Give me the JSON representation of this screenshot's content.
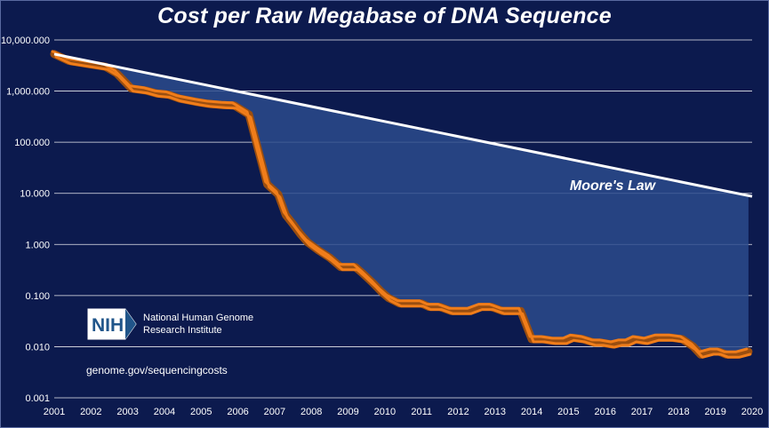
{
  "title": "Cost per Raw Megabase of DNA Sequence",
  "colors": {
    "background": "#0c1a4e",
    "gap_fill": "#2b4b8c",
    "actual_outline": "#f07d1a",
    "actual_band": "#9a4e10",
    "moore": "#ffffff",
    "grid": "#ffffff"
  },
  "chart_data": {
    "type": "line",
    "title": "Cost per Raw Megabase of DNA Sequence",
    "yscale": "log",
    "ylim": [
      0.001,
      10000
    ],
    "xlim": [
      2001,
      2020
    ],
    "y_tick_values": [
      10000,
      1000,
      100,
      10,
      1,
      0.1,
      0.01,
      0.001
    ],
    "y_tick_labels": [
      "10,000.000",
      "1,000.000",
      "100.000",
      "10.000",
      "1.000",
      "0.100",
      "0.010",
      "0.001"
    ],
    "x_tick_values": [
      2001,
      2002,
      2003,
      2004,
      2005,
      2006,
      2007,
      2008,
      2009,
      2010,
      2011,
      2012,
      2013,
      2014,
      2015,
      2016,
      2017,
      2018,
      2019,
      2020
    ],
    "x_tick_labels": [
      "2001",
      "2002",
      "2003",
      "2004",
      "2005",
      "2006",
      "2007",
      "2008",
      "2009",
      "2010",
      "2011",
      "2012",
      "2013",
      "2014",
      "2015",
      "2016",
      "2017",
      "2018",
      "2019",
      "2020"
    ],
    "series": [
      {
        "name": "Cost per Raw Megabase",
        "x": [
          2001.0,
          2001.4,
          2001.9,
          2002.4,
          2002.7,
          2003.1,
          2003.5,
          2003.8,
          2004.1,
          2004.4,
          2004.9,
          2005.2,
          2005.6,
          2005.9,
          2006.3,
          2006.8,
          2007.1,
          2007.3,
          2007.5,
          2007.7,
          2007.9,
          2008.2,
          2008.5,
          2008.8,
          2009.2,
          2009.4,
          2009.7,
          2009.9,
          2010.1,
          2010.4,
          2010.8,
          2011.0,
          2011.2,
          2011.5,
          2011.8,
          2012.0,
          2012.3,
          2012.6,
          2012.9,
          2013.2,
          2013.5,
          2013.7,
          2014.0,
          2014.3,
          2014.6,
          2014.9,
          2015.1,
          2015.4,
          2015.7,
          2015.9,
          2016.2,
          2016.4,
          2016.6,
          2016.8,
          2017.1,
          2017.4,
          2017.6,
          2017.8,
          2018.1,
          2018.4,
          2018.6,
          2018.9,
          2019.1,
          2019.3,
          2019.6,
          2019.9
        ],
        "values": [
          5292,
          3898,
          3413,
          2986,
          2230,
          1122,
          1027,
          893,
          856,
          716,
          611,
          563,
          533,
          524,
          347,
          15.0,
          9.5,
          3.8,
          2.5,
          1.6,
          1.1,
          0.76,
          0.55,
          0.36,
          0.36,
          0.27,
          0.17,
          0.12,
          0.09,
          0.07,
          0.07,
          0.07,
          0.06,
          0.06,
          0.05,
          0.05,
          0.05,
          0.06,
          0.06,
          0.05,
          0.05,
          0.05,
          0.014,
          0.014,
          0.013,
          0.013,
          0.015,
          0.014,
          0.012,
          0.012,
          0.011,
          0.012,
          0.012,
          0.014,
          0.013,
          0.015,
          0.015,
          0.015,
          0.014,
          0.01,
          0.007,
          0.008,
          0.008,
          0.007,
          0.007,
          0.008
        ]
      },
      {
        "name": "Moore's Law",
        "x": [
          2001.0,
          2020.0
        ],
        "values": [
          5292,
          8.7
        ]
      }
    ],
    "annotations": [
      "Moore's Law"
    ]
  },
  "logo": {
    "badge_text": "NIH",
    "line1": "National Human Genome",
    "line2": "Research Institute"
  },
  "source": "genome.gov/sequencingcosts"
}
